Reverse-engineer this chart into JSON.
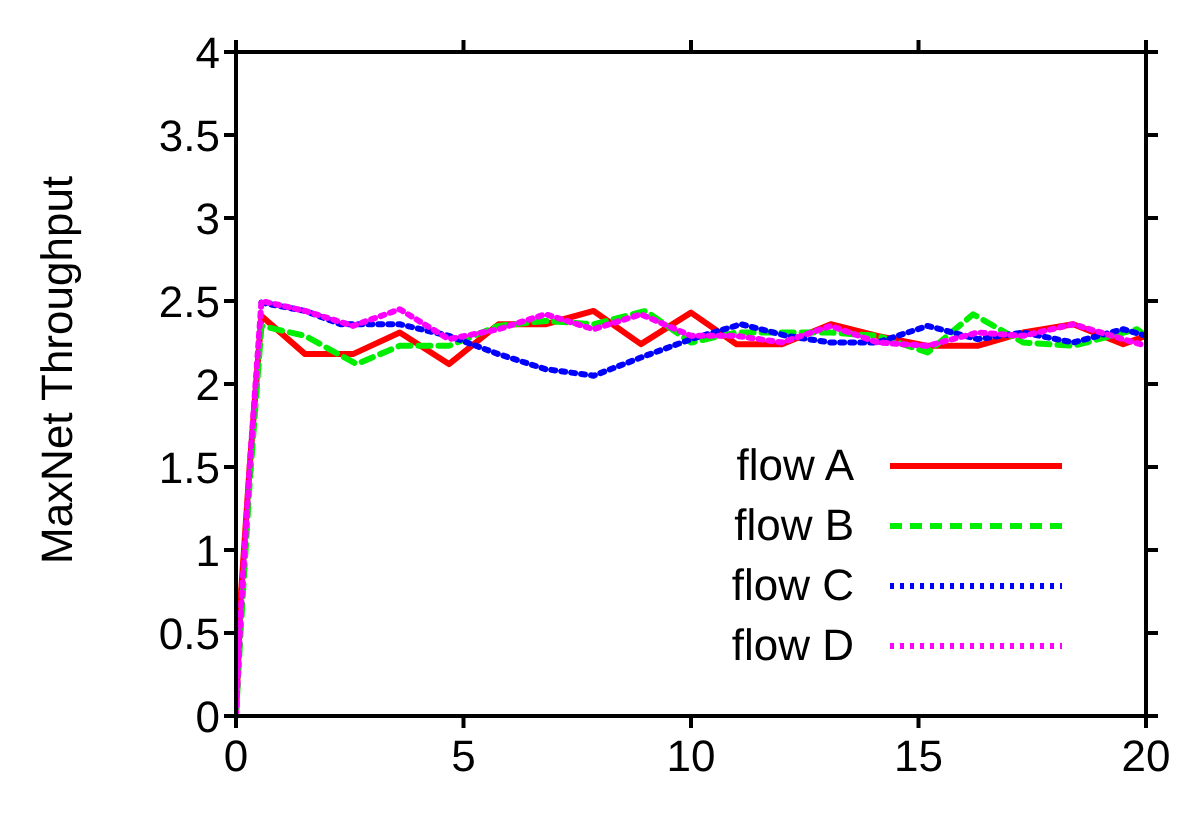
{
  "chart_data": {
    "type": "line",
    "ylabel": "MaxNet Throughput",
    "xlim": [
      0,
      20
    ],
    "xticks": [
      0,
      5,
      10,
      15,
      20
    ],
    "ylim": [
      0,
      4
    ],
    "yticks": [
      0,
      0.5,
      1,
      1.5,
      2,
      2.5,
      3,
      3.5,
      4
    ],
    "legend": "bottom right",
    "marker": "none",
    "series": [
      {
        "name": "flow A",
        "color": "#ff0000",
        "line_style": "solid",
        "x": [
          0,
          0.1,
          0.3,
          0.56,
          1.52,
          2.57,
          3.6,
          4.68,
          5.77,
          6.8,
          7.86,
          8.9,
          10,
          11,
          12,
          13.07,
          14.1,
          15.2,
          16.3,
          17.3,
          18.4,
          19.5,
          20
        ],
        "values": [
          0,
          0.7,
          1.5,
          2.41,
          2.18,
          2.18,
          2.31,
          2.12,
          2.36,
          2.36,
          2.44,
          2.24,
          2.43,
          2.24,
          2.24,
          2.36,
          2.29,
          2.23,
          2.23,
          2.31,
          2.36,
          2.24,
          2.29
        ]
      },
      {
        "name": "flow B",
        "color": "#00ee00",
        "line_style": "dashed",
        "x": [
          0,
          0.1,
          0.3,
          0.56,
          1.52,
          2.65,
          3.6,
          4.68,
          5.77,
          6.8,
          7.86,
          9,
          10,
          11,
          13.07,
          14.1,
          15.2,
          16.2,
          17.3,
          18.4,
          19.8,
          20
        ],
        "values": [
          0,
          0.5,
          1.4,
          2.35,
          2.29,
          2.12,
          2.23,
          2.23,
          2.35,
          2.38,
          2.36,
          2.44,
          2.25,
          2.31,
          2.31,
          2.29,
          2.19,
          2.42,
          2.25,
          2.23,
          2.33,
          2.29
        ]
      },
      {
        "name": "flow C",
        "color": "#0000ff",
        "line_style": "dotted",
        "x": [
          0.56,
          1.52,
          2.3,
          3.6,
          4.68,
          5.77,
          6.8,
          7.86,
          9,
          10,
          11.1,
          12.1,
          13.07,
          14.1,
          15.2,
          16.3,
          17.3,
          18.4,
          19.5,
          20
        ],
        "values": [
          2.49,
          2.44,
          2.36,
          2.36,
          2.29,
          2.18,
          2.09,
          2.05,
          2.17,
          2.27,
          2.36,
          2.29,
          2.25,
          2.25,
          2.35,
          2.27,
          2.31,
          2.25,
          2.33,
          2.29
        ]
      },
      {
        "name": "flow D",
        "color": "#ff00ff",
        "line_style": "dotted",
        "x": [
          0,
          0.1,
          0.3,
          0.56,
          1.52,
          2.57,
          3.6,
          4.68,
          5.77,
          6.8,
          7.86,
          8.9,
          10,
          11,
          12,
          13.07,
          14.1,
          15.2,
          16.3,
          17.3,
          18.4,
          19.5,
          20
        ],
        "values": [
          0,
          0.6,
          1.5,
          2.5,
          2.44,
          2.35,
          2.45,
          2.27,
          2.33,
          2.42,
          2.33,
          2.42,
          2.29,
          2.29,
          2.25,
          2.35,
          2.25,
          2.23,
          2.31,
          2.29,
          2.36,
          2.27,
          2.23
        ]
      }
    ]
  }
}
